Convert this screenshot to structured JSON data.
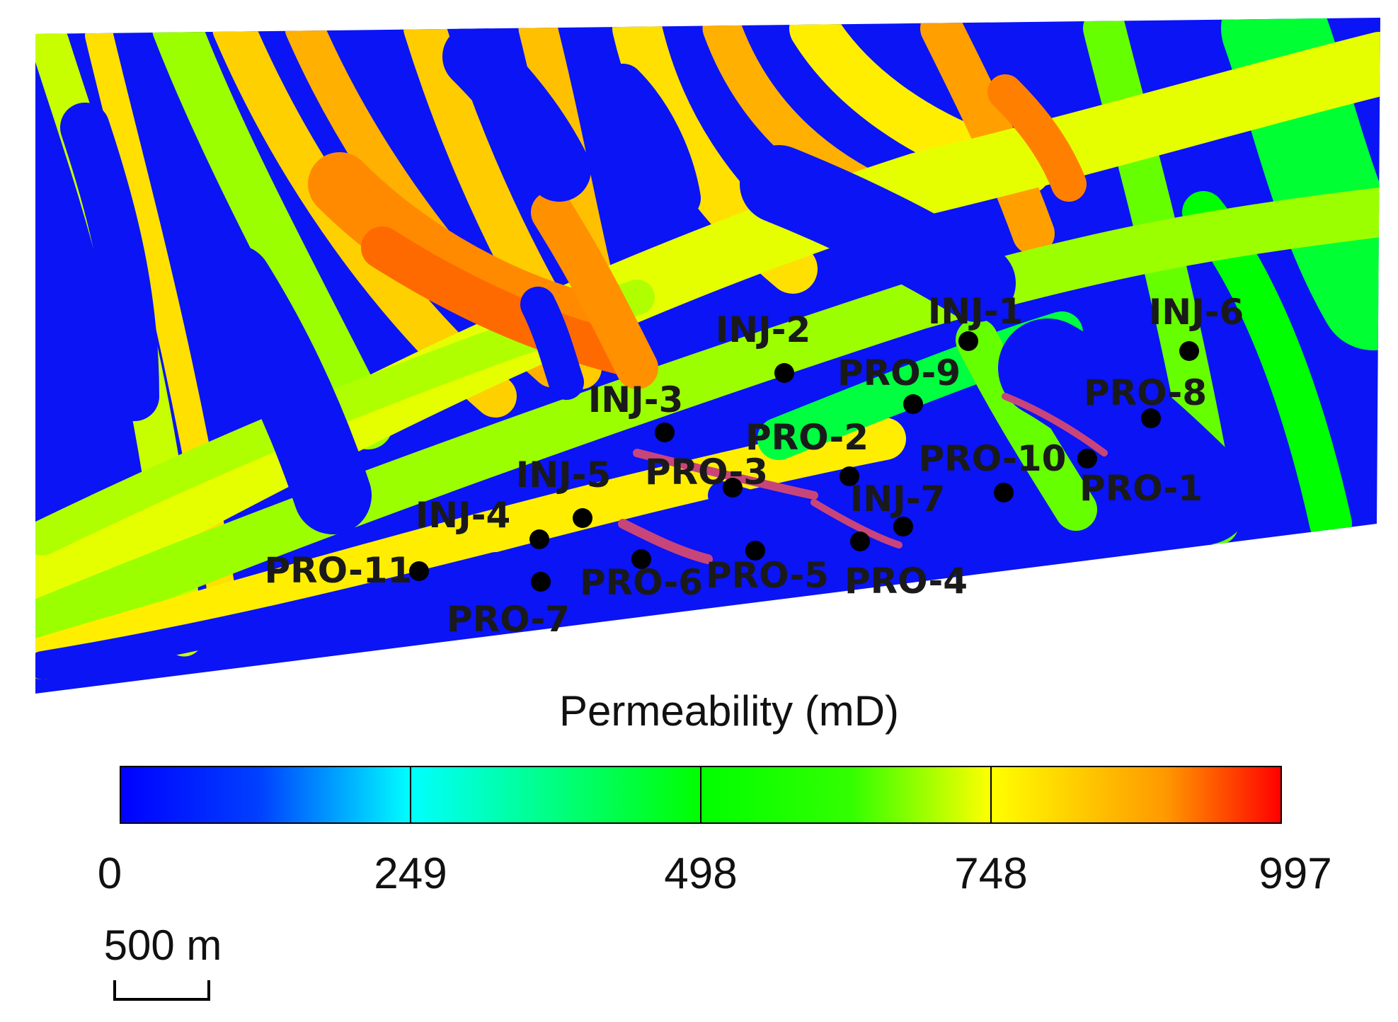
{
  "colorbar": {
    "title": "Permeability (mD)",
    "ticks": [
      "0",
      "249",
      "498",
      "748",
      "997"
    ],
    "min": 0,
    "max": 997,
    "colors": [
      "#0000ff",
      "#00ffff",
      "#00ff00",
      "#ffff00",
      "#ff0000"
    ]
  },
  "scale_bar": {
    "label": "500 m"
  },
  "wells": [
    {
      "name": "INJ-1"
    },
    {
      "name": "INJ-6"
    },
    {
      "name": "INJ-2"
    },
    {
      "name": "PRO-9"
    },
    {
      "name": "PRO-8"
    },
    {
      "name": "INJ-3"
    },
    {
      "name": "PRO-2"
    },
    {
      "name": "PRO-10"
    },
    {
      "name": "PRO-1"
    },
    {
      "name": "INJ-5"
    },
    {
      "name": "PRO-3"
    },
    {
      "name": "INJ-7"
    },
    {
      "name": "INJ-4"
    },
    {
      "name": "PRO-11"
    },
    {
      "name": "PRO-6"
    },
    {
      "name": "PRO-5"
    },
    {
      "name": "PRO-4"
    },
    {
      "name": "PRO-7"
    }
  ]
}
